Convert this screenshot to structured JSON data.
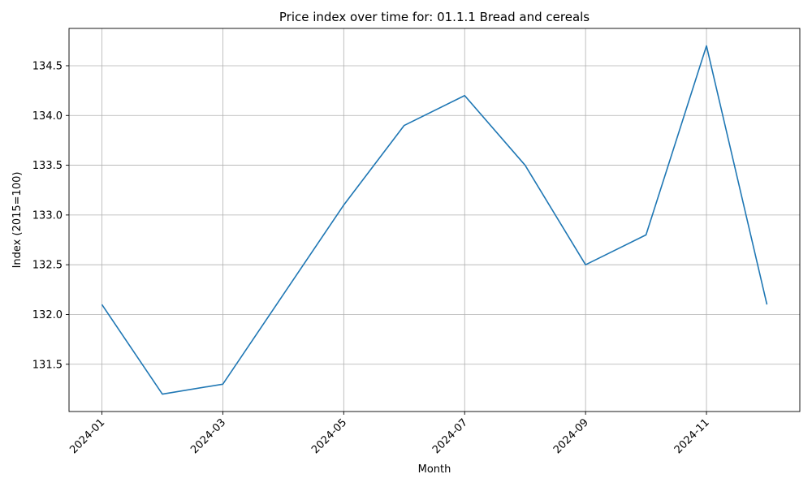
{
  "chart_data": {
    "type": "line",
    "title": "Price index over time for: 01.1.1 Bread and cereals",
    "xlabel": "Month",
    "ylabel": "Index (2015=100)",
    "x": [
      "2024-01",
      "2024-02",
      "2024-03",
      "2024-04",
      "2024-05",
      "2024-06",
      "2024-07",
      "2024-08",
      "2024-09",
      "2024-10",
      "2024-11",
      "2024-12"
    ],
    "series": [
      {
        "values": [
          132.1,
          131.2,
          131.3,
          132.2,
          133.1,
          133.9,
          134.2,
          133.5,
          132.5,
          132.8,
          134.7,
          132.1
        ],
        "color": "#1f77b4"
      }
    ],
    "ylim": [
      131.025,
      134.875
    ],
    "yticks": [
      131.5,
      132.0,
      132.5,
      133.0,
      133.5,
      134.0,
      134.5
    ],
    "ytick_labels": [
      "131.5",
      "132.0",
      "132.5",
      "133.0",
      "133.5",
      "134.0",
      "134.5"
    ],
    "xticks": [
      "2024-01",
      "2024-03",
      "2024-05",
      "2024-07",
      "2024-09",
      "2024-11"
    ],
    "grid": true,
    "legend": false
  }
}
